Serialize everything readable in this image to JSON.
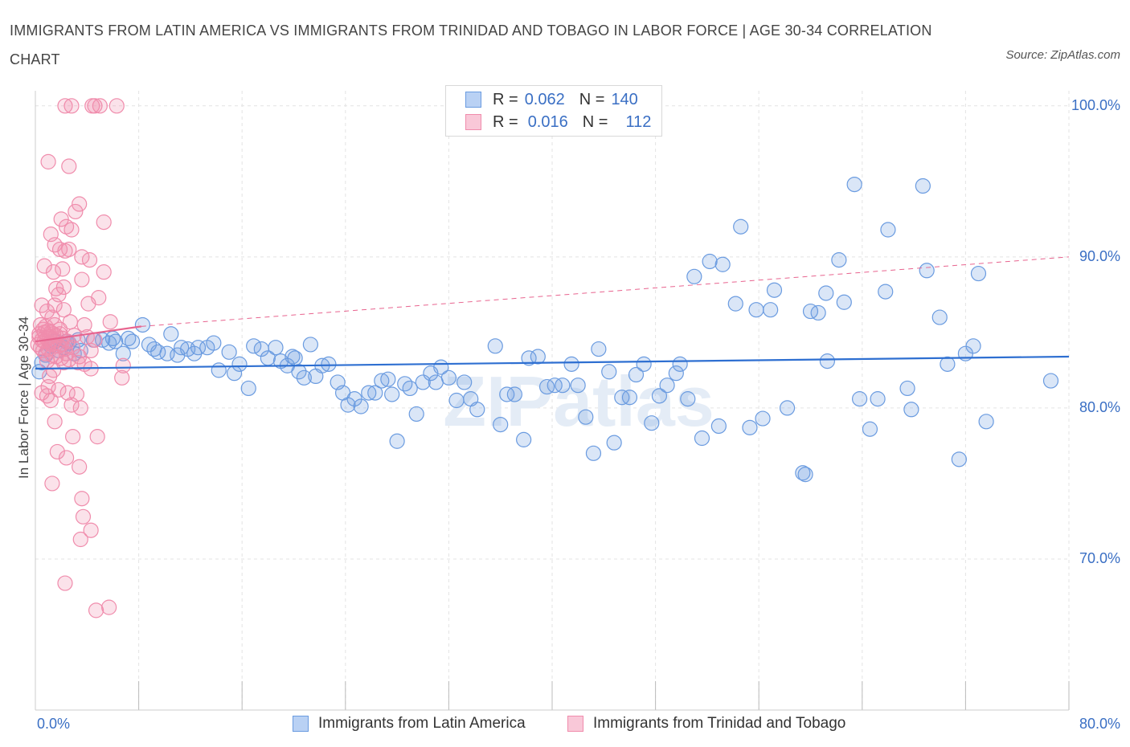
{
  "title": "IMMIGRANTS FROM LATIN AMERICA VS IMMIGRANTS FROM TRINIDAD AND TOBAGO IN LABOR FORCE | AGE 30-34 CORRELATION CHART",
  "source": "Source: ZipAtlas.com",
  "watermark": "ZIPatlas",
  "legend": {
    "rows": [
      {
        "r_label": "R =",
        "r_value": "0.062",
        "n_label": "N =",
        "n_value": "140"
      },
      {
        "r_label": "R =",
        "r_value": "0.016",
        "n_label": "N =",
        "n_value": "112"
      }
    ]
  },
  "chart_data": {
    "type": "scatter",
    "ylabel": "In Labor Force | Age 30-34",
    "xlim": [
      0,
      80
    ],
    "ylim": [
      60,
      101
    ],
    "x_tick_labels": [
      "0.0%",
      "80.0%"
    ],
    "y_ticks": [
      70,
      80,
      90,
      100
    ],
    "y_tick_labels": [
      "70.0%",
      "80.0%",
      "90.0%",
      "100.0%"
    ],
    "grid": true,
    "legend_position": "bottom",
    "colors": {
      "blue": "#6a9be0",
      "pink": "#f08cac",
      "blue_line": "#2e6fd1",
      "pink_line": "#e8648f"
    },
    "series": [
      {
        "name": "Immigrants from Latin America",
        "color": "#6a9be0",
        "trend": {
          "x": [
            0,
            80
          ],
          "y": [
            82.6,
            83.4
          ],
          "dashed": false
        },
        "points": [
          [
            0.3,
            82.4
          ],
          [
            0.5,
            83.0
          ],
          [
            0.8,
            83.5
          ],
          [
            1.2,
            84.1
          ],
          [
            1.5,
            84.4
          ],
          [
            1.8,
            83.8
          ],
          [
            2.2,
            84.0
          ],
          [
            2.6,
            84.3
          ],
          [
            3.0,
            83.6
          ],
          [
            3.3,
            84.5
          ],
          [
            4.5,
            84.5
          ],
          [
            5.2,
            84.5
          ],
          [
            6.2,
            84.4
          ],
          [
            6.0,
            84.6
          ],
          [
            6.8,
            83.6
          ],
          [
            7.5,
            84.4
          ],
          [
            8.3,
            85.5
          ],
          [
            8.8,
            84.2
          ],
          [
            9.5,
            83.7
          ],
          [
            10.2,
            83.6
          ],
          [
            10.5,
            84.9
          ],
          [
            11.3,
            84.0
          ],
          [
            11.0,
            83.5
          ],
          [
            11.8,
            83.9
          ],
          [
            12.6,
            84.0
          ],
          [
            13.3,
            84.0
          ],
          [
            13.8,
            84.3
          ],
          [
            14.2,
            82.5
          ],
          [
            15.0,
            83.7
          ],
          [
            15.4,
            82.3
          ],
          [
            15.8,
            82.9
          ],
          [
            16.5,
            81.3
          ],
          [
            16.9,
            84.1
          ],
          [
            17.5,
            83.9
          ],
          [
            18.0,
            83.3
          ],
          [
            18.6,
            84.0
          ],
          [
            19.0,
            83.1
          ],
          [
            19.5,
            82.8
          ],
          [
            19.9,
            83.4
          ],
          [
            20.4,
            82.4
          ],
          [
            20.8,
            82.0
          ],
          [
            21.3,
            84.2
          ],
          [
            21.7,
            82.1
          ],
          [
            22.2,
            82.8
          ],
          [
            22.7,
            82.9
          ],
          [
            23.4,
            81.7
          ],
          [
            23.8,
            81.0
          ],
          [
            24.2,
            80.2
          ],
          [
            24.7,
            80.6
          ],
          [
            25.2,
            80.1
          ],
          [
            25.8,
            81.0
          ],
          [
            26.3,
            81.0
          ],
          [
            26.8,
            81.8
          ],
          [
            27.3,
            81.9
          ],
          [
            28.0,
            77.8
          ],
          [
            28.6,
            81.6
          ],
          [
            29.0,
            81.3
          ],
          [
            29.5,
            79.6
          ],
          [
            30.0,
            81.7
          ],
          [
            30.6,
            82.3
          ],
          [
            31.0,
            81.7
          ],
          [
            31.4,
            82.7
          ],
          [
            32.0,
            82.0
          ],
          [
            32.6,
            80.5
          ],
          [
            33.2,
            81.7
          ],
          [
            33.7,
            80.6
          ],
          [
            34.2,
            79.9
          ],
          [
            35.6,
            84.1
          ],
          [
            36.0,
            78.9
          ],
          [
            36.5,
            80.9
          ],
          [
            37.1,
            80.9
          ],
          [
            37.8,
            77.9
          ],
          [
            38.2,
            83.3
          ],
          [
            38.9,
            83.4
          ],
          [
            39.6,
            81.4
          ],
          [
            40.2,
            81.5
          ],
          [
            40.8,
            81.5
          ],
          [
            41.5,
            82.9
          ],
          [
            42.0,
            81.5
          ],
          [
            42.6,
            79.4
          ],
          [
            43.2,
            77.0
          ],
          [
            43.6,
            83.9
          ],
          [
            44.4,
            82.4
          ],
          [
            44.8,
            77.7
          ],
          [
            45.4,
            80.7
          ],
          [
            46.0,
            80.7
          ],
          [
            46.5,
            82.2
          ],
          [
            47.1,
            82.9
          ],
          [
            47.7,
            79.0
          ],
          [
            48.3,
            80.8
          ],
          [
            48.9,
            81.5
          ],
          [
            49.6,
            82.3
          ],
          [
            49.9,
            82.9
          ],
          [
            50.5,
            80.6
          ],
          [
            51.0,
            88.7
          ],
          [
            51.6,
            78.0
          ],
          [
            52.2,
            89.7
          ],
          [
            52.9,
            78.8
          ],
          [
            53.2,
            89.5
          ],
          [
            54.2,
            86.9
          ],
          [
            54.6,
            92.0
          ],
          [
            55.3,
            78.7
          ],
          [
            55.8,
            86.5
          ],
          [
            56.3,
            79.3
          ],
          [
            56.9,
            86.5
          ],
          [
            57.2,
            87.8
          ],
          [
            58.2,
            80.0
          ],
          [
            59.4,
            75.7
          ],
          [
            59.6,
            75.6
          ],
          [
            60.0,
            86.4
          ],
          [
            60.6,
            86.3
          ],
          [
            61.2,
            87.6
          ],
          [
            61.3,
            83.1
          ],
          [
            62.2,
            89.8
          ],
          [
            62.6,
            87.0
          ],
          [
            63.4,
            94.8
          ],
          [
            63.8,
            80.6
          ],
          [
            64.6,
            78.6
          ],
          [
            65.2,
            80.6
          ],
          [
            65.8,
            87.7
          ],
          [
            66.0,
            91.8
          ],
          [
            67.5,
            81.3
          ],
          [
            67.8,
            79.9
          ],
          [
            68.7,
            94.7
          ],
          [
            69.0,
            89.1
          ],
          [
            70.0,
            86.0
          ],
          [
            70.6,
            82.9
          ],
          [
            71.5,
            76.6
          ],
          [
            72.0,
            83.6
          ],
          [
            72.6,
            84.1
          ],
          [
            73.0,
            88.9
          ],
          [
            73.6,
            79.1
          ],
          [
            78.6,
            81.8
          ],
          [
            2.4,
            84.4
          ],
          [
            3.5,
            83.8
          ],
          [
            5.7,
            84.3
          ],
          [
            9.2,
            83.9
          ],
          [
            12.3,
            83.6
          ],
          [
            7.2,
            84.6
          ],
          [
            20.1,
            83.3
          ],
          [
            27.6,
            80.9
          ]
        ]
      },
      {
        "name": "Immigrants from Trinidad and Tobago",
        "color": "#f08cac",
        "trend": {
          "x": [
            0,
            8.2
          ],
          "y": [
            84.4,
            85.4
          ],
          "dashed": false
        },
        "trend_extended": {
          "x": [
            8.2,
            80
          ],
          "y": [
            85.4,
            90.0
          ],
          "dashed": true
        },
        "points": [
          [
            2.3,
            100.0
          ],
          [
            2.8,
            100.0
          ],
          [
            4.4,
            100.0
          ],
          [
            4.6,
            100.0
          ],
          [
            5.0,
            100.0
          ],
          [
            6.3,
            100.0
          ],
          [
            1.0,
            96.3
          ],
          [
            2.6,
            96.0
          ],
          [
            3.1,
            93.0
          ],
          [
            3.4,
            93.5
          ],
          [
            5.3,
            92.3
          ],
          [
            2.0,
            92.5
          ],
          [
            2.4,
            92.0
          ],
          [
            2.8,
            91.8
          ],
          [
            1.2,
            91.5
          ],
          [
            1.5,
            90.8
          ],
          [
            1.9,
            90.5
          ],
          [
            2.3,
            90.4
          ],
          [
            2.6,
            90.5
          ],
          [
            3.6,
            90.0
          ],
          [
            4.2,
            89.8
          ],
          [
            5.3,
            89.0
          ],
          [
            0.7,
            89.4
          ],
          [
            1.4,
            89.0
          ],
          [
            2.1,
            89.2
          ],
          [
            3.6,
            88.5
          ],
          [
            1.6,
            87.9
          ],
          [
            2.2,
            88.0
          ],
          [
            1.8,
            87.5
          ],
          [
            4.1,
            86.9
          ],
          [
            4.9,
            87.3
          ],
          [
            0.5,
            86.8
          ],
          [
            1.5,
            86.8
          ],
          [
            2.2,
            86.5
          ],
          [
            0.9,
            86.4
          ],
          [
            1.3,
            86.0
          ],
          [
            1.5,
            85.5
          ],
          [
            1.9,
            85.2
          ],
          [
            2.7,
            85.7
          ],
          [
            3.8,
            85.5
          ],
          [
            5.8,
            85.7
          ],
          [
            0.4,
            85.5
          ],
          [
            0.6,
            85.2
          ],
          [
            0.8,
            85.4
          ],
          [
            1.0,
            85.1
          ],
          [
            1.2,
            85.0
          ],
          [
            1.4,
            84.9
          ],
          [
            1.6,
            84.8
          ],
          [
            0.3,
            84.7
          ],
          [
            0.5,
            84.5
          ],
          [
            0.7,
            84.4
          ],
          [
            0.9,
            84.6
          ],
          [
            1.1,
            84.3
          ],
          [
            1.3,
            84.2
          ],
          [
            1.5,
            84.5
          ],
          [
            1.8,
            84.1
          ],
          [
            2.0,
            84.2
          ],
          [
            2.3,
            83.9
          ],
          [
            2.5,
            84.4
          ],
          [
            0.4,
            84.0
          ],
          [
            0.6,
            83.8
          ],
          [
            0.8,
            83.6
          ],
          [
            1.0,
            83.9
          ],
          [
            1.3,
            83.5
          ],
          [
            1.6,
            83.4
          ],
          [
            2.0,
            83.3
          ],
          [
            2.4,
            83.6
          ],
          [
            2.9,
            84.0
          ],
          [
            3.4,
            83.4
          ],
          [
            4.0,
            84.7
          ],
          [
            4.3,
            83.8
          ],
          [
            4.6,
            84.5
          ],
          [
            0.3,
            84.9
          ],
          [
            0.7,
            85.0
          ],
          [
            1.1,
            84.7
          ],
          [
            1.9,
            84.9
          ],
          [
            2.6,
            83.2
          ],
          [
            3.3,
            83.0
          ],
          [
            0.9,
            83.1
          ],
          [
            1.4,
            82.5
          ],
          [
            2.2,
            83.0
          ],
          [
            3.8,
            82.9
          ],
          [
            4.3,
            82.6
          ],
          [
            1.1,
            82.1
          ],
          [
            6.8,
            82.8
          ],
          [
            6.7,
            82.0
          ],
          [
            1.0,
            81.4
          ],
          [
            1.8,
            81.2
          ],
          [
            2.5,
            81.0
          ],
          [
            0.5,
            81.0
          ],
          [
            0.9,
            80.8
          ],
          [
            1.2,
            80.5
          ],
          [
            3.2,
            80.9
          ],
          [
            3.5,
            80.0
          ],
          [
            2.8,
            80.2
          ],
          [
            1.5,
            79.1
          ],
          [
            2.9,
            78.1
          ],
          [
            4.8,
            78.1
          ],
          [
            1.7,
            77.1
          ],
          [
            2.4,
            76.7
          ],
          [
            3.4,
            76.1
          ],
          [
            1.3,
            75.0
          ],
          [
            3.6,
            74.0
          ],
          [
            3.7,
            72.8
          ],
          [
            4.3,
            71.9
          ],
          [
            3.5,
            71.3
          ],
          [
            2.3,
            68.4
          ],
          [
            4.7,
            66.6
          ],
          [
            5.7,
            66.8
          ],
          [
            2.1,
            84.6
          ],
          [
            3.0,
            84.8
          ],
          [
            0.2,
            84.2
          ]
        ]
      }
    ]
  }
}
